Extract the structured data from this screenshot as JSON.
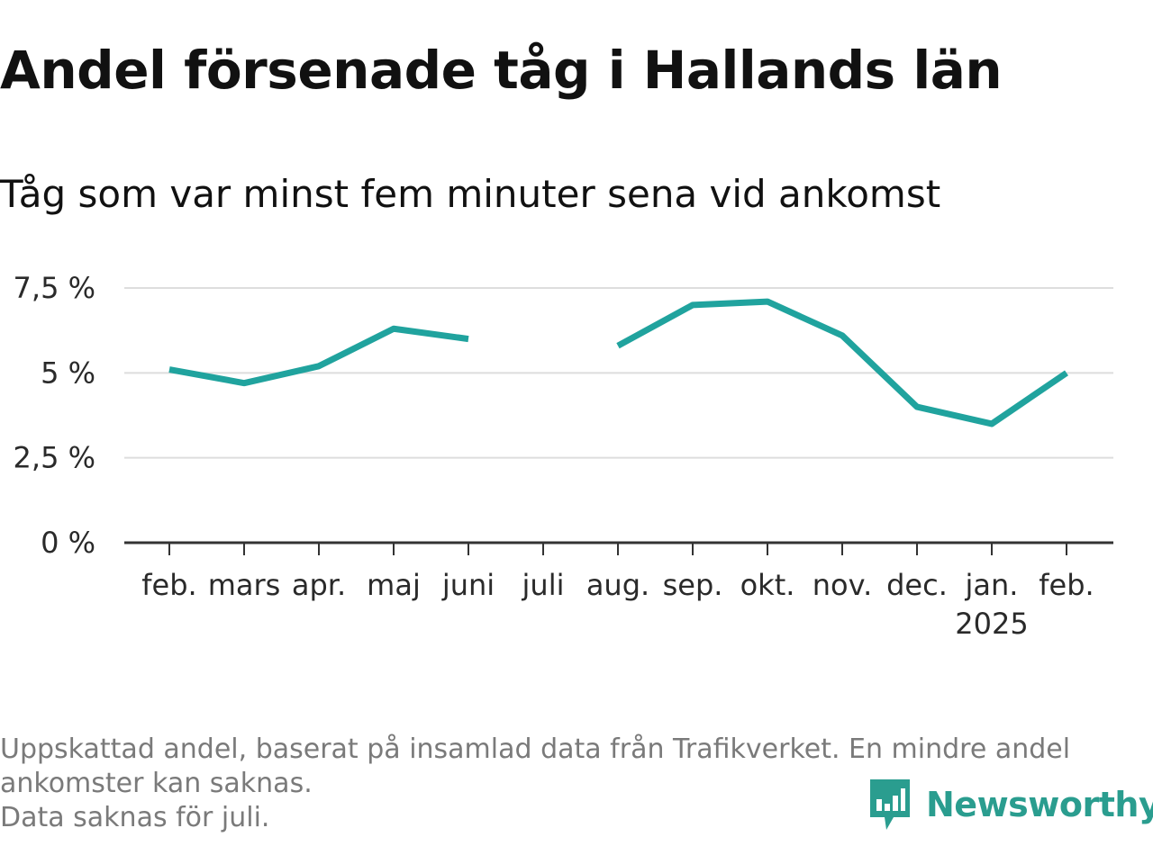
{
  "header": {
    "title": "Andel försenade tåg i Hallands län",
    "subtitle": "Tåg som var minst fem minuter sena vid ankomst"
  },
  "colors": {
    "line": "#20a39e",
    "grid": "#dddddd",
    "axis": "#333333",
    "footnote": "#7a7a7a",
    "brand": "#2a9d8f"
  },
  "chart_data": {
    "type": "line",
    "title": "Andel försenade tåg i Hallands län",
    "subtitle": "Tåg som var minst fem minuter sena vid ankomst",
    "categories": [
      "feb.",
      "mars",
      "apr.",
      "maj",
      "juni",
      "juli",
      "aug.",
      "sep.",
      "okt.",
      "nov.",
      "dec.",
      "jan.",
      "feb."
    ],
    "year_labels": [
      "",
      "",
      "",
      "",
      "",
      "",
      "",
      "",
      "",
      "",
      "",
      "2025",
      ""
    ],
    "series": [
      {
        "values": [
          5.1,
          4.7,
          5.2,
          6.3,
          6.0,
          null,
          5.8,
          7.0,
          7.1,
          6.1,
          4.0,
          3.5,
          5.0
        ]
      }
    ],
    "y_ticks": [
      0,
      2.5,
      5,
      7.5
    ],
    "y_tick_labels": [
      "0 %",
      "2,5 %",
      "5 %",
      "7,5 %"
    ],
    "ylim": [
      0,
      7.5
    ],
    "xlabel": "",
    "ylabel": "",
    "grid": true,
    "legend": "none"
  },
  "footnote": {
    "line1": "Uppskattad andel, baserat på insamlad data från Trafikverket. En mindre andel",
    "line2": "ankomster kan saknas.",
    "line3": "Data saknas för juli."
  },
  "brand": {
    "name": "Newsworthy",
    "icon": "newsworthy-logo-icon"
  }
}
